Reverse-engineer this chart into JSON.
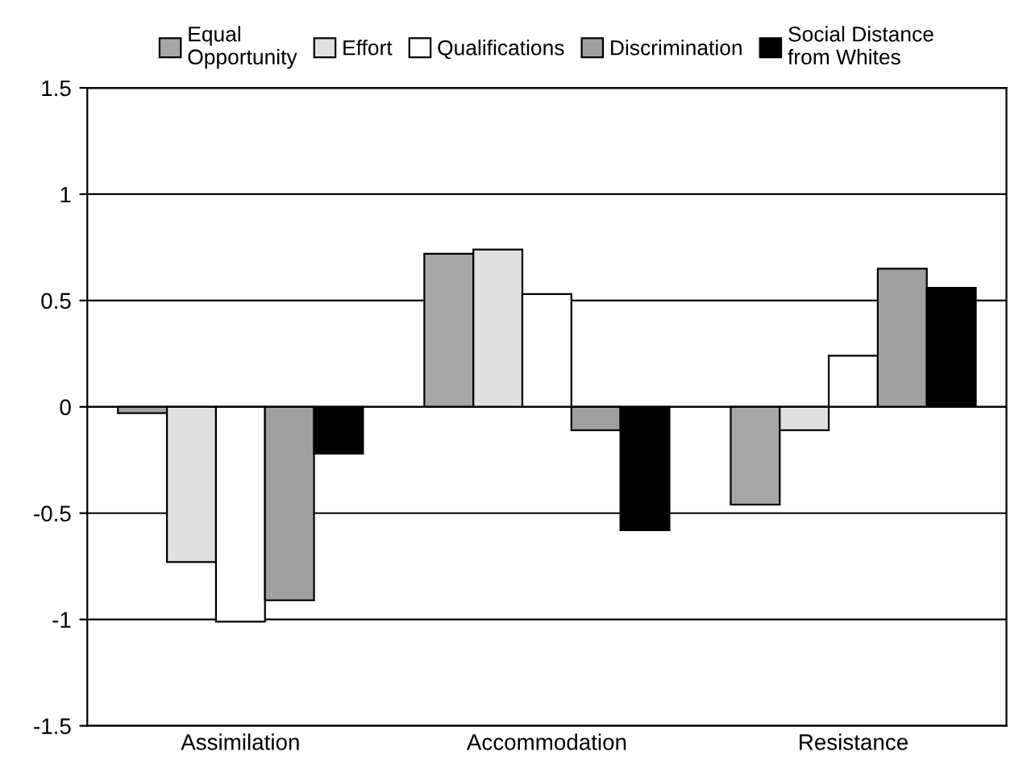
{
  "chart_data": {
    "type": "bar",
    "categories": [
      "Assimilation",
      "Accommodation",
      "Resistance"
    ],
    "series": [
      {
        "name": "Equal\nOpportunity",
        "color": "#a6a6a6",
        "values": [
          -0.03,
          0.72,
          -0.46
        ]
      },
      {
        "name": "Effort",
        "color": "#e0e0e0",
        "values": [
          -0.73,
          0.74,
          -0.11
        ]
      },
      {
        "name": "Qualifications",
        "color": "#ffffff",
        "values": [
          -1.01,
          0.53,
          0.24
        ]
      },
      {
        "name": "Discrimination",
        "color": "#a0a0a0",
        "values": [
          -0.91,
          -0.11,
          0.65
        ]
      },
      {
        "name": "Social Distance\nfrom Whites",
        "color": "#000000",
        "values": [
          -0.22,
          -0.58,
          0.56
        ]
      }
    ],
    "ylim": [
      -1.5,
      1.5
    ],
    "yticks": [
      -1.5,
      -1,
      -0.5,
      0,
      0.5,
      1,
      1.5
    ],
    "grid": "y",
    "legend": "top"
  }
}
